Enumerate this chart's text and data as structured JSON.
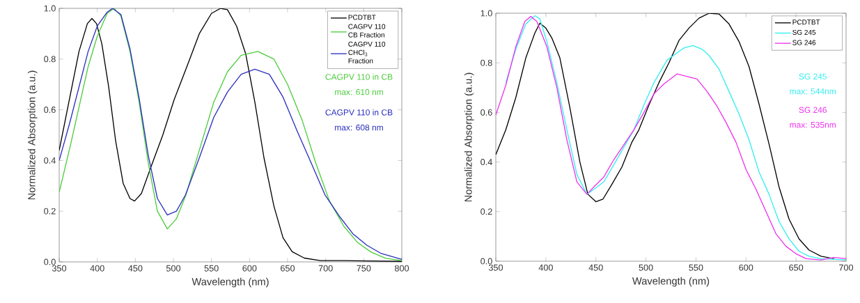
{
  "chart_data": [
    {
      "type": "line",
      "xlabel": "Wavelength (nm)",
      "ylabel": "Normalized Absorption (a.u.)",
      "xlim": [
        350,
        800
      ],
      "ylim": [
        0,
        1
      ],
      "xticks": [
        350,
        400,
        450,
        500,
        550,
        600,
        650,
        700,
        750,
        800
      ],
      "yticks": [
        {
          "value": 0,
          "label": "0.0"
        },
        {
          "value": 0.2,
          "label": "0.2"
        },
        {
          "value": 0.4,
          "label": "0.4"
        },
        {
          "value": 0.6,
          "label": "0.6"
        },
        {
          "value": 0.8,
          "label": "0.8"
        },
        {
          "value": 1,
          "label": "1.0"
        }
      ],
      "legend": "top right",
      "annotations": [
        "CAGPV 110 in CB",
        "max: 610 nm",
        "CAGPV 110 in CB",
        "max: 608 nm"
      ],
      "series": [
        {
          "name": "PCDTBT",
          "color": "#000000",
          "x": [
            350,
            364,
            376,
            387,
            393,
            399,
            406,
            415,
            424,
            434,
            443,
            449,
            458,
            470,
            486,
            501,
            519,
            534,
            550,
            562,
            571,
            583,
            595,
            607,
            619,
            632,
            644,
            656,
            672,
            693,
            724,
            800
          ],
          "values": [
            0.44,
            0.65,
            0.83,
            0.94,
            0.96,
            0.94,
            0.86,
            0.69,
            0.48,
            0.31,
            0.25,
            0.24,
            0.27,
            0.37,
            0.5,
            0.64,
            0.78,
            0.9,
            0.98,
            1.0,
            0.995,
            0.93,
            0.82,
            0.63,
            0.41,
            0.22,
            0.095,
            0.04,
            0.015,
            0.005,
            0.005,
            0.002
          ]
        },
        {
          "name": "CAGPV 110 CB Fraction",
          "color": "#4ccc3c",
          "x": [
            350,
            364,
            376,
            388,
            400,
            413,
            422,
            431,
            443,
            455,
            467,
            479,
            492,
            504,
            516,
            534,
            553,
            571,
            589,
            611,
            632,
            650,
            669,
            687,
            705,
            724,
            742,
            760,
            779,
            800
          ],
          "values": [
            0.275,
            0.45,
            0.61,
            0.77,
            0.89,
            0.98,
            1.0,
            0.97,
            0.83,
            0.63,
            0.39,
            0.2,
            0.13,
            0.17,
            0.26,
            0.44,
            0.63,
            0.75,
            0.815,
            0.83,
            0.8,
            0.7,
            0.56,
            0.39,
            0.24,
            0.14,
            0.076,
            0.038,
            0.014,
            0.005
          ]
        },
        {
          "name": "CAGPV 110 CHCl$_{3}$ Fraction",
          "color": "#2b2fbf",
          "x": [
            350,
            364,
            376,
            388,
            400,
            413,
            420,
            431,
            443,
            455,
            467,
            479,
            492,
            504,
            516,
            534,
            553,
            571,
            589,
            607,
            626,
            644,
            662,
            681,
            699,
            718,
            736,
            754,
            773,
            800
          ],
          "values": [
            0.4,
            0.55,
            0.69,
            0.83,
            0.93,
            0.985,
            1.0,
            0.976,
            0.84,
            0.645,
            0.42,
            0.25,
            0.185,
            0.2,
            0.265,
            0.41,
            0.57,
            0.67,
            0.74,
            0.76,
            0.74,
            0.65,
            0.52,
            0.39,
            0.265,
            0.18,
            0.11,
            0.066,
            0.033,
            0.01
          ]
        }
      ]
    },
    {
      "type": "line",
      "xlabel": "Wavelength (nm)",
      "ylabel": "Normalized Absorption (a.u.)",
      "xlim": [
        350,
        700
      ],
      "ylim": [
        0,
        1
      ],
      "xticks": [
        350,
        400,
        450,
        500,
        550,
        600,
        650,
        700
      ],
      "yticks": [
        {
          "value": 0,
          "label": "0.0"
        },
        {
          "value": 0.2,
          "label": "0.2"
        },
        {
          "value": 0.4,
          "label": "0.4"
        },
        {
          "value": 0.6,
          "label": "0.6"
        },
        {
          "value": 0.8,
          "label": "0.8"
        },
        {
          "value": 1,
          "label": "1.0"
        }
      ],
      "legend": "top right",
      "annotations": [
        "SG 245",
        "max: 544nm",
        "SG 246",
        "max: 535nm"
      ],
      "series": [
        {
          "name": "PCDTBT",
          "color": "#000000",
          "x": [
            350,
            360,
            370,
            380,
            389,
            394,
            400,
            406,
            414,
            424,
            434,
            442,
            450,
            457,
            466,
            476,
            486,
            493,
            503,
            513,
            523,
            533,
            543,
            553,
            563,
            573,
            583,
            593,
            603,
            613,
            623,
            633,
            643,
            653,
            663,
            675,
            688
          ],
          "values": [
            0.43,
            0.53,
            0.66,
            0.82,
            0.92,
            0.96,
            0.94,
            0.9,
            0.82,
            0.62,
            0.4,
            0.27,
            0.24,
            0.25,
            0.31,
            0.38,
            0.48,
            0.53,
            0.63,
            0.72,
            0.8,
            0.89,
            0.94,
            0.98,
            1.0,
            0.997,
            0.957,
            0.886,
            0.785,
            0.634,
            0.473,
            0.3,
            0.17,
            0.09,
            0.045,
            0.02,
            0.01
          ]
        },
        {
          "name": "SG 245",
          "color": "#33eef0",
          "x": [
            360,
            370,
            380,
            389,
            394,
            401,
            411,
            421,
            431,
            441,
            448,
            458,
            468,
            478,
            488,
            498,
            508,
            521,
            531,
            538,
            547,
            556,
            563,
            573,
            583,
            593,
            603,
            613,
            623,
            633,
            643,
            653,
            663,
            675,
            700
          ],
          "values": [
            0.72,
            0.855,
            0.957,
            0.99,
            0.977,
            0.886,
            0.72,
            0.53,
            0.35,
            0.27,
            0.29,
            0.32,
            0.39,
            0.46,
            0.53,
            0.63,
            0.72,
            0.81,
            0.84,
            0.86,
            0.87,
            0.855,
            0.83,
            0.775,
            0.685,
            0.594,
            0.49,
            0.36,
            0.27,
            0.16,
            0.09,
            0.04,
            0.02,
            0.01,
            0.005
          ]
        },
        {
          "name": "SG 246",
          "color": "#ee33ee",
          "x": [
            350,
            360,
            370,
            379,
            385,
            391,
            401,
            411,
            421,
            431,
            441,
            448,
            458,
            468,
            478,
            488,
            498,
            508,
            518,
            531,
            541,
            551,
            561,
            571,
            580,
            590,
            600,
            610,
            620,
            630,
            640,
            650,
            660,
            675,
            688,
            700
          ],
          "values": [
            0.59,
            0.71,
            0.865,
            0.967,
            0.987,
            0.967,
            0.865,
            0.7,
            0.49,
            0.32,
            0.27,
            0.3,
            0.34,
            0.41,
            0.47,
            0.53,
            0.6,
            0.675,
            0.715,
            0.755,
            0.745,
            0.735,
            0.685,
            0.625,
            0.56,
            0.48,
            0.37,
            0.29,
            0.2,
            0.11,
            0.06,
            0.03,
            0.01,
            0.005,
            0.015,
            0.01
          ]
        }
      ]
    }
  ]
}
